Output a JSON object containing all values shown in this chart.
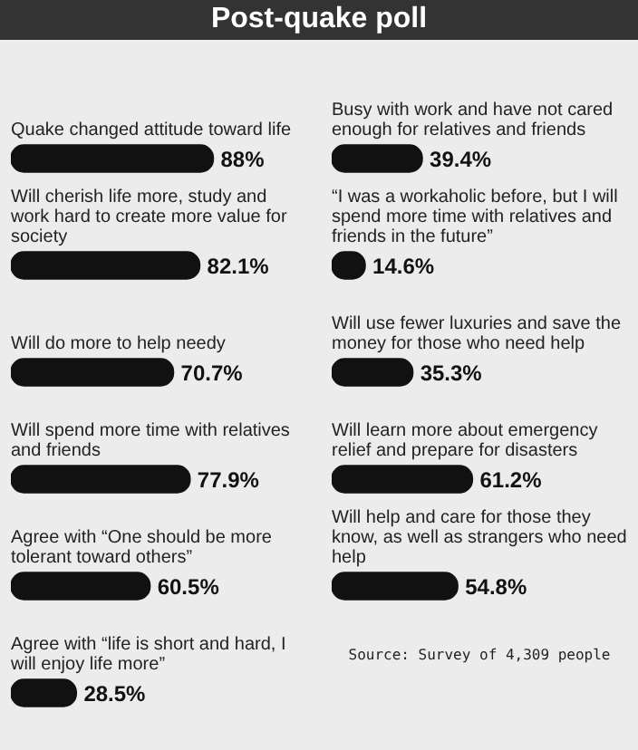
{
  "chart_data": [
    {
      "type": "bar",
      "orientation": "horizontal",
      "title": "Post-quake poll",
      "categories": [
        "Quake changed attitude toward life",
        "Will cherish life more, study and work hard to create more value for society",
        "Will do more to help needy",
        "Will spend more time with relatives and friends",
        "Agree with “One should be more tolerant toward others”",
        "Agree with “life is short and hard, I will enjoy life more”"
      ],
      "values": [
        88,
        82.1,
        70.7,
        77.9,
        60.5,
        28.5
      ],
      "value_labels": [
        "88%",
        "82.1%",
        "70.7%",
        "77.9%",
        "60.5%",
        "28.5%"
      ],
      "color": "#111111"
    },
    {
      "type": "bar",
      "orientation": "horizontal",
      "categories": [
        "Busy with work and have not cared enough for relatives and friends",
        "“I was a workaholic before, but I will spend more time with relatives and friends in the future”",
        "Will use fewer luxuries and save the money for those who need help",
        "Will learn more about emergency relief and prepare for disasters",
        "Will help and care for those they know, as well as strangers who need help"
      ],
      "values": [
        39.4,
        14.6,
        35.3,
        61.2,
        54.8
      ],
      "value_labels": [
        "39.4%",
        "14.6%",
        "35.3%",
        "61.2%",
        "54.8%"
      ],
      "color": "#111111",
      "annotations": [
        "Source: Survey of 4,309 people"
      ]
    }
  ]
}
